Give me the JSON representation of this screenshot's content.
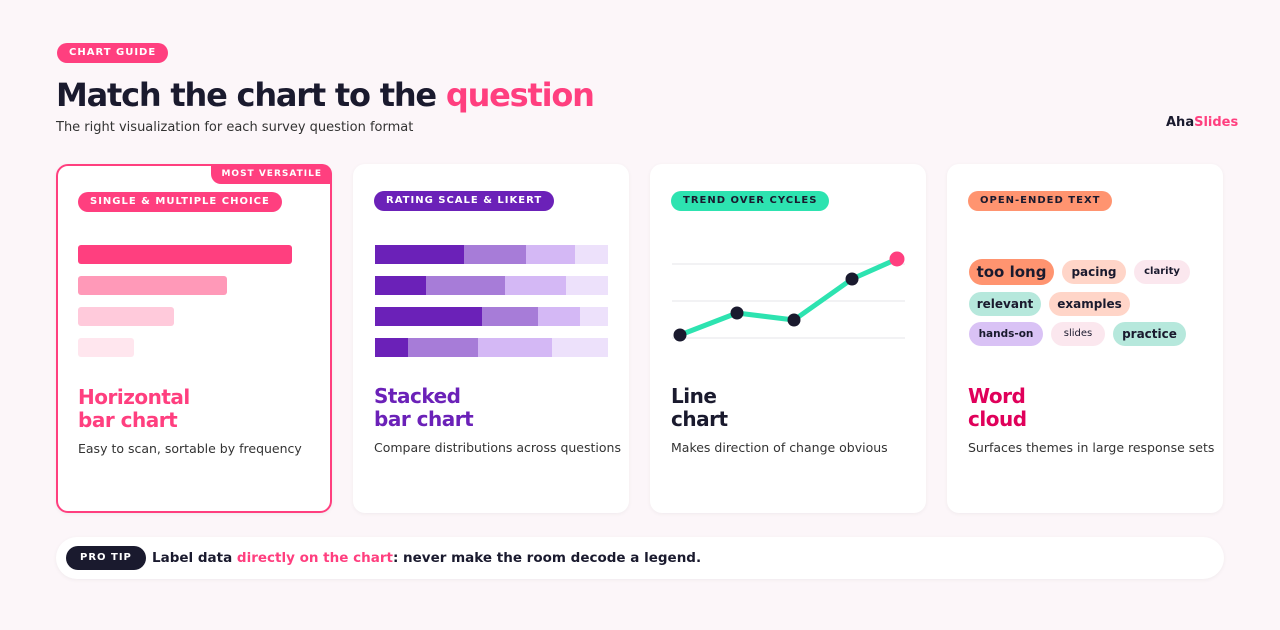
{
  "header": {
    "badge": "CHART GUIDE",
    "title": "Match the chart to the",
    "title_highlight": "question",
    "subtitle": "The right visualization for each survey question format",
    "brand": "Aha",
    "brand_highlight": "Slides"
  },
  "cards": [
    {
      "flag": "MOST VERSATILE",
      "tag": "SINGLE & MULTIPLE CHOICE",
      "title_line1": "Horizontal",
      "title_line2": "bar chart",
      "description": "Easy to scan, sortable by frequency"
    },
    {
      "tag": "RATING SCALE & LIKERT",
      "title_line1": "Stacked",
      "title_line2": "bar chart",
      "description": "Compare distributions across questions"
    },
    {
      "tag": "TREND OVER CYCLES",
      "title_line1": "Line",
      "title_line2": "chart",
      "description": "Makes direction of change obvious"
    },
    {
      "tag": "OPEN-ENDED TEXT",
      "title_line1": "Word",
      "title_line2": "cloud",
      "description": "Surfaces themes in large response sets"
    }
  ],
  "word_cloud": [
    "too long",
    "pacing",
    "clarity",
    "relevant",
    "examples",
    "hands-on",
    "slides",
    "practice"
  ],
  "tip": {
    "label": "PRO TIP",
    "text_before": "Label data",
    "highlight": "directly on the chart",
    "text_after": ": never make the room decode a legend."
  }
}
